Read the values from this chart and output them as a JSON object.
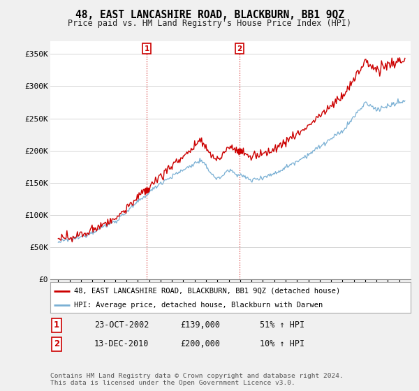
{
  "title": "48, EAST LANCASHIRE ROAD, BLACKBURN, BB1 9QZ",
  "subtitle": "Price paid vs. HM Land Registry's House Price Index (HPI)",
  "ylabel_ticks": [
    "£0",
    "£50K",
    "£100K",
    "£150K",
    "£200K",
    "£250K",
    "£300K",
    "£350K"
  ],
  "ytick_values": [
    0,
    50000,
    100000,
    150000,
    200000,
    250000,
    300000,
    350000
  ],
  "ylim": [
    0,
    370000
  ],
  "hpi_color": "#7ab0d4",
  "price_color": "#cc0000",
  "legend_label_price": "48, EAST LANCASHIRE ROAD, BLACKBURN, BB1 9QZ (detached house)",
  "legend_label_hpi": "HPI: Average price, detached house, Blackburn with Darwen",
  "sale1_date": "23-OCT-2002",
  "sale1_price": "£139,000",
  "sale1_hpi": "51% ↑ HPI",
  "sale2_date": "13-DEC-2010",
  "sale2_price": "£200,000",
  "sale2_hpi": "10% ↑ HPI",
  "footnote": "Contains HM Land Registry data © Crown copyright and database right 2024.\nThis data is licensed under the Open Government Licence v3.0.",
  "bg_color": "#f0f0f0",
  "plot_bg_color": "#ffffff",
  "grid_color": "#d0d0d0"
}
